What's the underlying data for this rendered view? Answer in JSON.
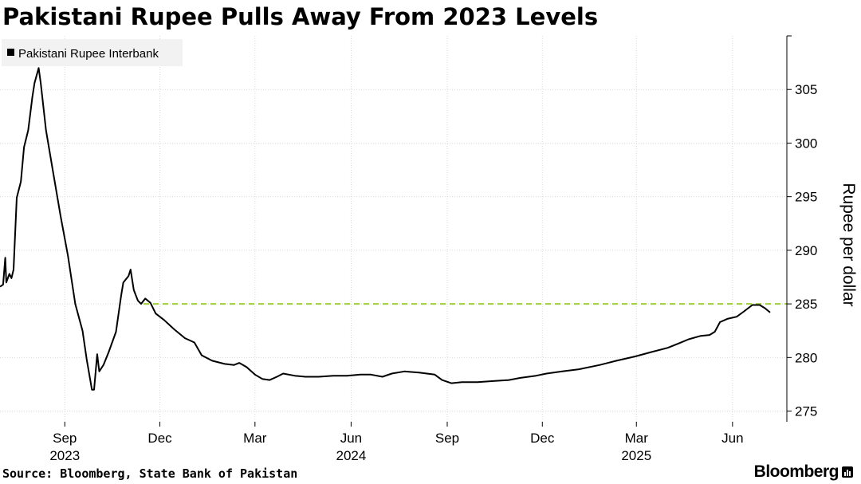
{
  "title": "Pakistani Rupee Pulls Away From 2023 Levels",
  "source": "Source: Bloomberg, State Bank of Pakistan",
  "brand": "Bloomberg",
  "colors": {
    "series": "#000000",
    "reference": "#9ccc3c",
    "grid": "#d9d9d9",
    "legend_bg": "#f2f2f2"
  },
  "chart_data": {
    "type": "line",
    "ylabel": "Rupee per dollar",
    "ylim": [
      274,
      310
    ],
    "yticks": [
      275,
      280,
      285,
      290,
      295,
      300,
      305
    ],
    "xlim": [
      "2023-07-01",
      "2025-07-23"
    ],
    "x_month_ticks": [
      {
        "date": "2023-09-01",
        "label": "Sep"
      },
      {
        "date": "2023-12-01",
        "label": "Dec"
      },
      {
        "date": "2024-03-01",
        "label": "Mar"
      },
      {
        "date": "2024-06-01",
        "label": "Jun"
      },
      {
        "date": "2024-09-01",
        "label": "Sep"
      },
      {
        "date": "2024-12-01",
        "label": "Dec"
      },
      {
        "date": "2025-03-01",
        "label": "Mar"
      },
      {
        "date": "2025-06-01",
        "label": "Jun"
      }
    ],
    "x_year_labels": [
      {
        "date": "2023-09-01",
        "label": "2023"
      },
      {
        "date": "2024-06-01",
        "label": "2024"
      },
      {
        "date": "2025-03-01",
        "label": "2025"
      }
    ],
    "reference_line": {
      "value": 285,
      "style": "dashed"
    },
    "legend": {
      "placement": "top-left",
      "entries": [
        "Pakistani Rupee Interbank"
      ]
    },
    "grid": {
      "vertical": true,
      "horizontal": true
    },
    "series": [
      {
        "name": "Pakistani Rupee Interbank",
        "points": [
          [
            "2023-07-01",
            286.6
          ],
          [
            "2023-07-04",
            286.8
          ],
          [
            "2023-07-06",
            289.3
          ],
          [
            "2023-07-07",
            287.0
          ],
          [
            "2023-07-10",
            287.8
          ],
          [
            "2023-07-12",
            287.4
          ],
          [
            "2023-07-14",
            288.2
          ],
          [
            "2023-07-17",
            294.9
          ],
          [
            "2023-07-21",
            296.4
          ],
          [
            "2023-07-24",
            299.6
          ],
          [
            "2023-07-28",
            301.2
          ],
          [
            "2023-08-01",
            304.3
          ],
          [
            "2023-08-03",
            305.6
          ],
          [
            "2023-08-07",
            307.0
          ],
          [
            "2023-08-09",
            305.6
          ],
          [
            "2023-08-14",
            301.2
          ],
          [
            "2023-08-21",
            297.2
          ],
          [
            "2023-08-28",
            293.2
          ],
          [
            "2023-09-04",
            289.5
          ],
          [
            "2023-09-11",
            285.0
          ],
          [
            "2023-09-18",
            282.5
          ],
          [
            "2023-09-22",
            279.8
          ],
          [
            "2023-09-27",
            277.0
          ],
          [
            "2023-09-29",
            277.0
          ],
          [
            "2023-10-02",
            280.3
          ],
          [
            "2023-10-04",
            278.7
          ],
          [
            "2023-10-08",
            279.3
          ],
          [
            "2023-10-13",
            280.5
          ],
          [
            "2023-10-20",
            282.4
          ],
          [
            "2023-10-25",
            285.8
          ],
          [
            "2023-10-27",
            287.0
          ],
          [
            "2023-11-01",
            287.6
          ],
          [
            "2023-11-03",
            288.2
          ],
          [
            "2023-11-06",
            286.3
          ],
          [
            "2023-11-10",
            285.3
          ],
          [
            "2023-11-13",
            285.0
          ],
          [
            "2023-11-17",
            285.5
          ],
          [
            "2023-11-22",
            285.1
          ],
          [
            "2023-11-27",
            284.1
          ],
          [
            "2023-12-05",
            283.5
          ],
          [
            "2023-12-15",
            282.6
          ],
          [
            "2023-12-25",
            281.8
          ],
          [
            "2024-01-03",
            281.4
          ],
          [
            "2024-01-10",
            280.2
          ],
          [
            "2024-01-20",
            279.7
          ],
          [
            "2024-02-01",
            279.4
          ],
          [
            "2024-02-10",
            279.3
          ],
          [
            "2024-02-15",
            279.5
          ],
          [
            "2024-02-22",
            279.1
          ],
          [
            "2024-03-01",
            278.4
          ],
          [
            "2024-03-08",
            278.0
          ],
          [
            "2024-03-15",
            277.9
          ],
          [
            "2024-03-22",
            278.2
          ],
          [
            "2024-03-28",
            278.5
          ],
          [
            "2024-04-08",
            278.3
          ],
          [
            "2024-04-18",
            278.2
          ],
          [
            "2024-05-01",
            278.2
          ],
          [
            "2024-05-15",
            278.3
          ],
          [
            "2024-05-28",
            278.3
          ],
          [
            "2024-06-10",
            278.4
          ],
          [
            "2024-06-20",
            278.4
          ],
          [
            "2024-07-01",
            278.2
          ],
          [
            "2024-07-10",
            278.5
          ],
          [
            "2024-07-22",
            278.7
          ],
          [
            "2024-08-05",
            278.6
          ],
          [
            "2024-08-20",
            278.4
          ],
          [
            "2024-08-27",
            277.9
          ],
          [
            "2024-09-05",
            277.6
          ],
          [
            "2024-09-15",
            277.7
          ],
          [
            "2024-09-30",
            277.7
          ],
          [
            "2024-10-15",
            277.8
          ],
          [
            "2024-10-30",
            277.9
          ],
          [
            "2024-11-10",
            278.1
          ],
          [
            "2024-11-25",
            278.3
          ],
          [
            "2024-12-05",
            278.5
          ],
          [
            "2024-12-20",
            278.7
          ],
          [
            "2025-01-05",
            278.9
          ],
          [
            "2025-01-25",
            279.3
          ],
          [
            "2025-02-10",
            279.7
          ],
          [
            "2025-02-28",
            280.1
          ],
          [
            "2025-03-15",
            280.5
          ],
          [
            "2025-03-31",
            280.9
          ],
          [
            "2025-04-10",
            281.3
          ],
          [
            "2025-04-20",
            281.7
          ],
          [
            "2025-05-01",
            282.0
          ],
          [
            "2025-05-10",
            282.1
          ],
          [
            "2025-05-15",
            282.4
          ],
          [
            "2025-05-20",
            283.3
          ],
          [
            "2025-05-27",
            283.6
          ],
          [
            "2025-06-05",
            283.8
          ],
          [
            "2025-06-12",
            284.3
          ],
          [
            "2025-06-20",
            284.9
          ],
          [
            "2025-06-27",
            284.9
          ],
          [
            "2025-07-02",
            284.6
          ],
          [
            "2025-07-07",
            284.2
          ]
        ]
      }
    ]
  }
}
